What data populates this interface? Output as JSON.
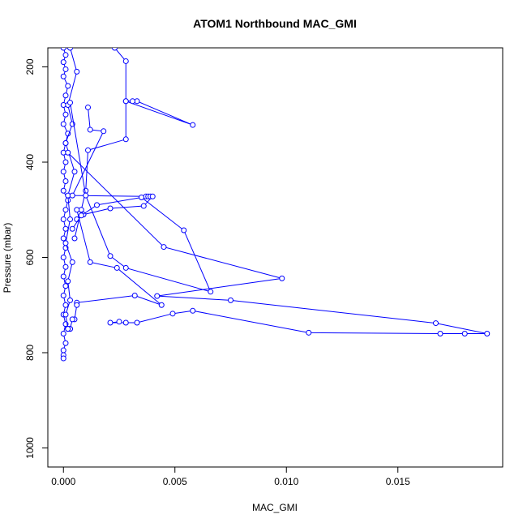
{
  "chart_data": {
    "type": "line",
    "title": "ATOM1 Northbound MAC_GMI",
    "xlabel": "MAC_GMI",
    "ylabel": "Pressure (mbar)",
    "xlim": [
      -0.0007,
      0.0197
    ],
    "ylim": [
      1040,
      160
    ],
    "y_reversed": true,
    "x_ticks": [
      0.0,
      0.005,
      0.01,
      0.015
    ],
    "x_tick_labels": [
      "0.000",
      "0.005",
      "0.010",
      "0.015"
    ],
    "y_ticks": [
      200,
      400,
      600,
      800,
      1000
    ],
    "y_tick_labels": [
      "200",
      "400",
      "600",
      "800",
      "1000"
    ],
    "grid": false,
    "legend": "none",
    "series_color": "#0000ff",
    "series": [
      {
        "x": [
          0.0,
          0.0001,
          0.0,
          0.0001,
          0.0,
          0.0002,
          0.0001,
          0.0,
          0.0001,
          0.0,
          0.0002,
          0.0001,
          0.0,
          0.0001,
          0.0,
          0.0001,
          0.0,
          0.0002,
          0.0001,
          0.0,
          0.0001,
          0.0,
          0.0001,
          0.0,
          0.0001,
          0.0,
          0.0001,
          0.0,
          0.0001,
          0.0,
          0.0001,
          0.0,
          0.0001,
          0.0,
          0.0,
          0.0
        ],
        "y": [
          160,
          175,
          190,
          205,
          220,
          240,
          260,
          280,
          300,
          320,
          340,
          360,
          380,
          400,
          420,
          440,
          460,
          480,
          500,
          520,
          540,
          560,
          580,
          600,
          620,
          640,
          660,
          680,
          700,
          720,
          740,
          760,
          780,
          795,
          805,
          812
        ]
      },
      {
        "x": [
          0.0003,
          0.0006,
          0.0002,
          0.0004,
          0.0001,
          0.0005,
          0.0002,
          0.0003,
          0.0001,
          0.0004,
          0.0002,
          0.0003,
          0.0001,
          0.0002
        ],
        "y": [
          160,
          210,
          280,
          320,
          360,
          420,
          470,
          520,
          570,
          610,
          650,
          690,
          720,
          750
        ]
      },
      {
        "x": [
          0.0023,
          0.0028,
          0.0028,
          0.0058,
          0.0033,
          0.0031,
          0.0028,
          0.0028,
          0.0011,
          0.001,
          0.0008,
          0.0005
        ],
        "y": [
          160,
          188,
          272,
          322,
          272,
          272,
          272,
          352,
          375,
          460,
          500,
          560
        ]
      },
      {
        "x": [
          0.0011,
          0.0012,
          0.0018,
          0.0004,
          0.0037,
          0.0038,
          0.0039,
          0.004,
          0.0036,
          0.0021,
          0.0009,
          0.0006
        ],
        "y": [
          285,
          332,
          335,
          470,
          472,
          472,
          472,
          472,
          492,
          497,
          510,
          520
        ]
      },
      {
        "x": [
          0.0003,
          0.001,
          0.0021,
          0.0028,
          0.0066,
          0.0054,
          0.0035,
          0.0015,
          0.0008,
          0.0004
        ],
        "y": [
          275,
          470,
          597,
          622,
          672,
          543,
          474,
          490,
          512,
          540
        ]
      },
      {
        "x": [
          0.0002,
          0.0045,
          0.0098,
          0.0042,
          0.0075,
          0.0167,
          0.019,
          0.018,
          0.0169,
          0.011,
          0.0058,
          0.0049,
          0.0033,
          0.0028,
          0.0021,
          0.0025
        ],
        "y": [
          380,
          578,
          644,
          681,
          690,
          738,
          760,
          760,
          760,
          758,
          712,
          718,
          737,
          737,
          737,
          735
        ]
      },
      {
        "x": [
          0.0006,
          0.0012,
          0.0024,
          0.0044,
          0.0032,
          0.0006,
          0.0006,
          0.0005,
          0.0004,
          0.0003,
          0.0002,
          0.0003,
          0.0002
        ],
        "y": [
          500,
          610,
          622,
          700,
          680,
          695,
          700,
          730,
          730,
          750,
          750,
          750,
          750
        ]
      }
    ]
  }
}
